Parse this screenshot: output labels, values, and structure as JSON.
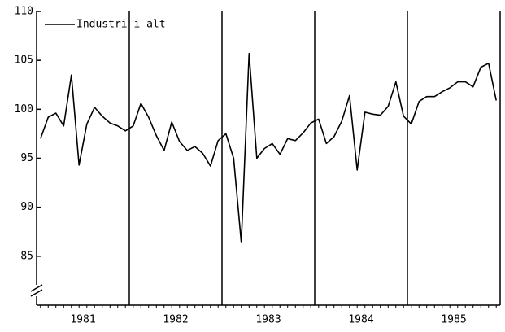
{
  "chart_data": {
    "type": "line",
    "x": [
      1981.042,
      1981.125,
      1981.208,
      1981.292,
      1981.375,
      1981.458,
      1981.542,
      1981.625,
      1981.708,
      1981.792,
      1981.875,
      1981.958,
      1982.042,
      1982.125,
      1982.208,
      1982.292,
      1982.375,
      1982.458,
      1982.542,
      1982.625,
      1982.708,
      1982.792,
      1982.875,
      1982.958,
      1983.042,
      1983.125,
      1983.208,
      1983.292,
      1983.375,
      1983.458,
      1983.542,
      1983.625,
      1983.708,
      1983.792,
      1983.875,
      1983.958,
      1984.042,
      1984.125,
      1984.208,
      1984.292,
      1984.375,
      1984.458,
      1984.542,
      1984.625,
      1984.708,
      1984.792,
      1984.875,
      1984.958,
      1985.042,
      1985.125,
      1985.208,
      1985.292,
      1985.375,
      1985.458,
      1985.542,
      1985.625,
      1985.708,
      1985.792,
      1985.875,
      1985.958
    ],
    "series": [
      {
        "name": "Industri i alt",
        "color": "#000000",
        "values": [
          97,
          99.2,
          99.6,
          98.3,
          103.5,
          94.3,
          98.5,
          100.2,
          99.3,
          98.6,
          98.3,
          97.8,
          98.3,
          100.6,
          99.2,
          97.3,
          95.8,
          98.7,
          96.7,
          95.8,
          96.2,
          95.5,
          94.2,
          96.8,
          97.5,
          95,
          86.4,
          105.7,
          95,
          96,
          96.5,
          95.4,
          97,
          96.8,
          97.6,
          98.6,
          99,
          96.5,
          97.2,
          98.8,
          101.4,
          93.8,
          99.7,
          99.5,
          99.4,
          100.3,
          102.8,
          99.3,
          98.5,
          100.8,
          101.3,
          101.3,
          101.8,
          102.2,
          102.8,
          102.8,
          102.3,
          104.3,
          104.7,
          100.9
        ]
      }
    ],
    "xlim": [
      1981,
      1986
    ],
    "xticks": [
      {
        "value": 1981.5,
        "label": "1981"
      },
      {
        "value": 1982.5,
        "label": "1982"
      },
      {
        "value": 1983.5,
        "label": "1983"
      },
      {
        "value": 1984.5,
        "label": "1984"
      },
      {
        "value": 1985.5,
        "label": "1985"
      }
    ],
    "vlines": [
      1982,
      1983,
      1984,
      1985,
      1986
    ],
    "ylim": [
      80,
      110
    ],
    "yticks": [
      85,
      90,
      95,
      100,
      105,
      110
    ],
    "legend": "upper-left"
  }
}
